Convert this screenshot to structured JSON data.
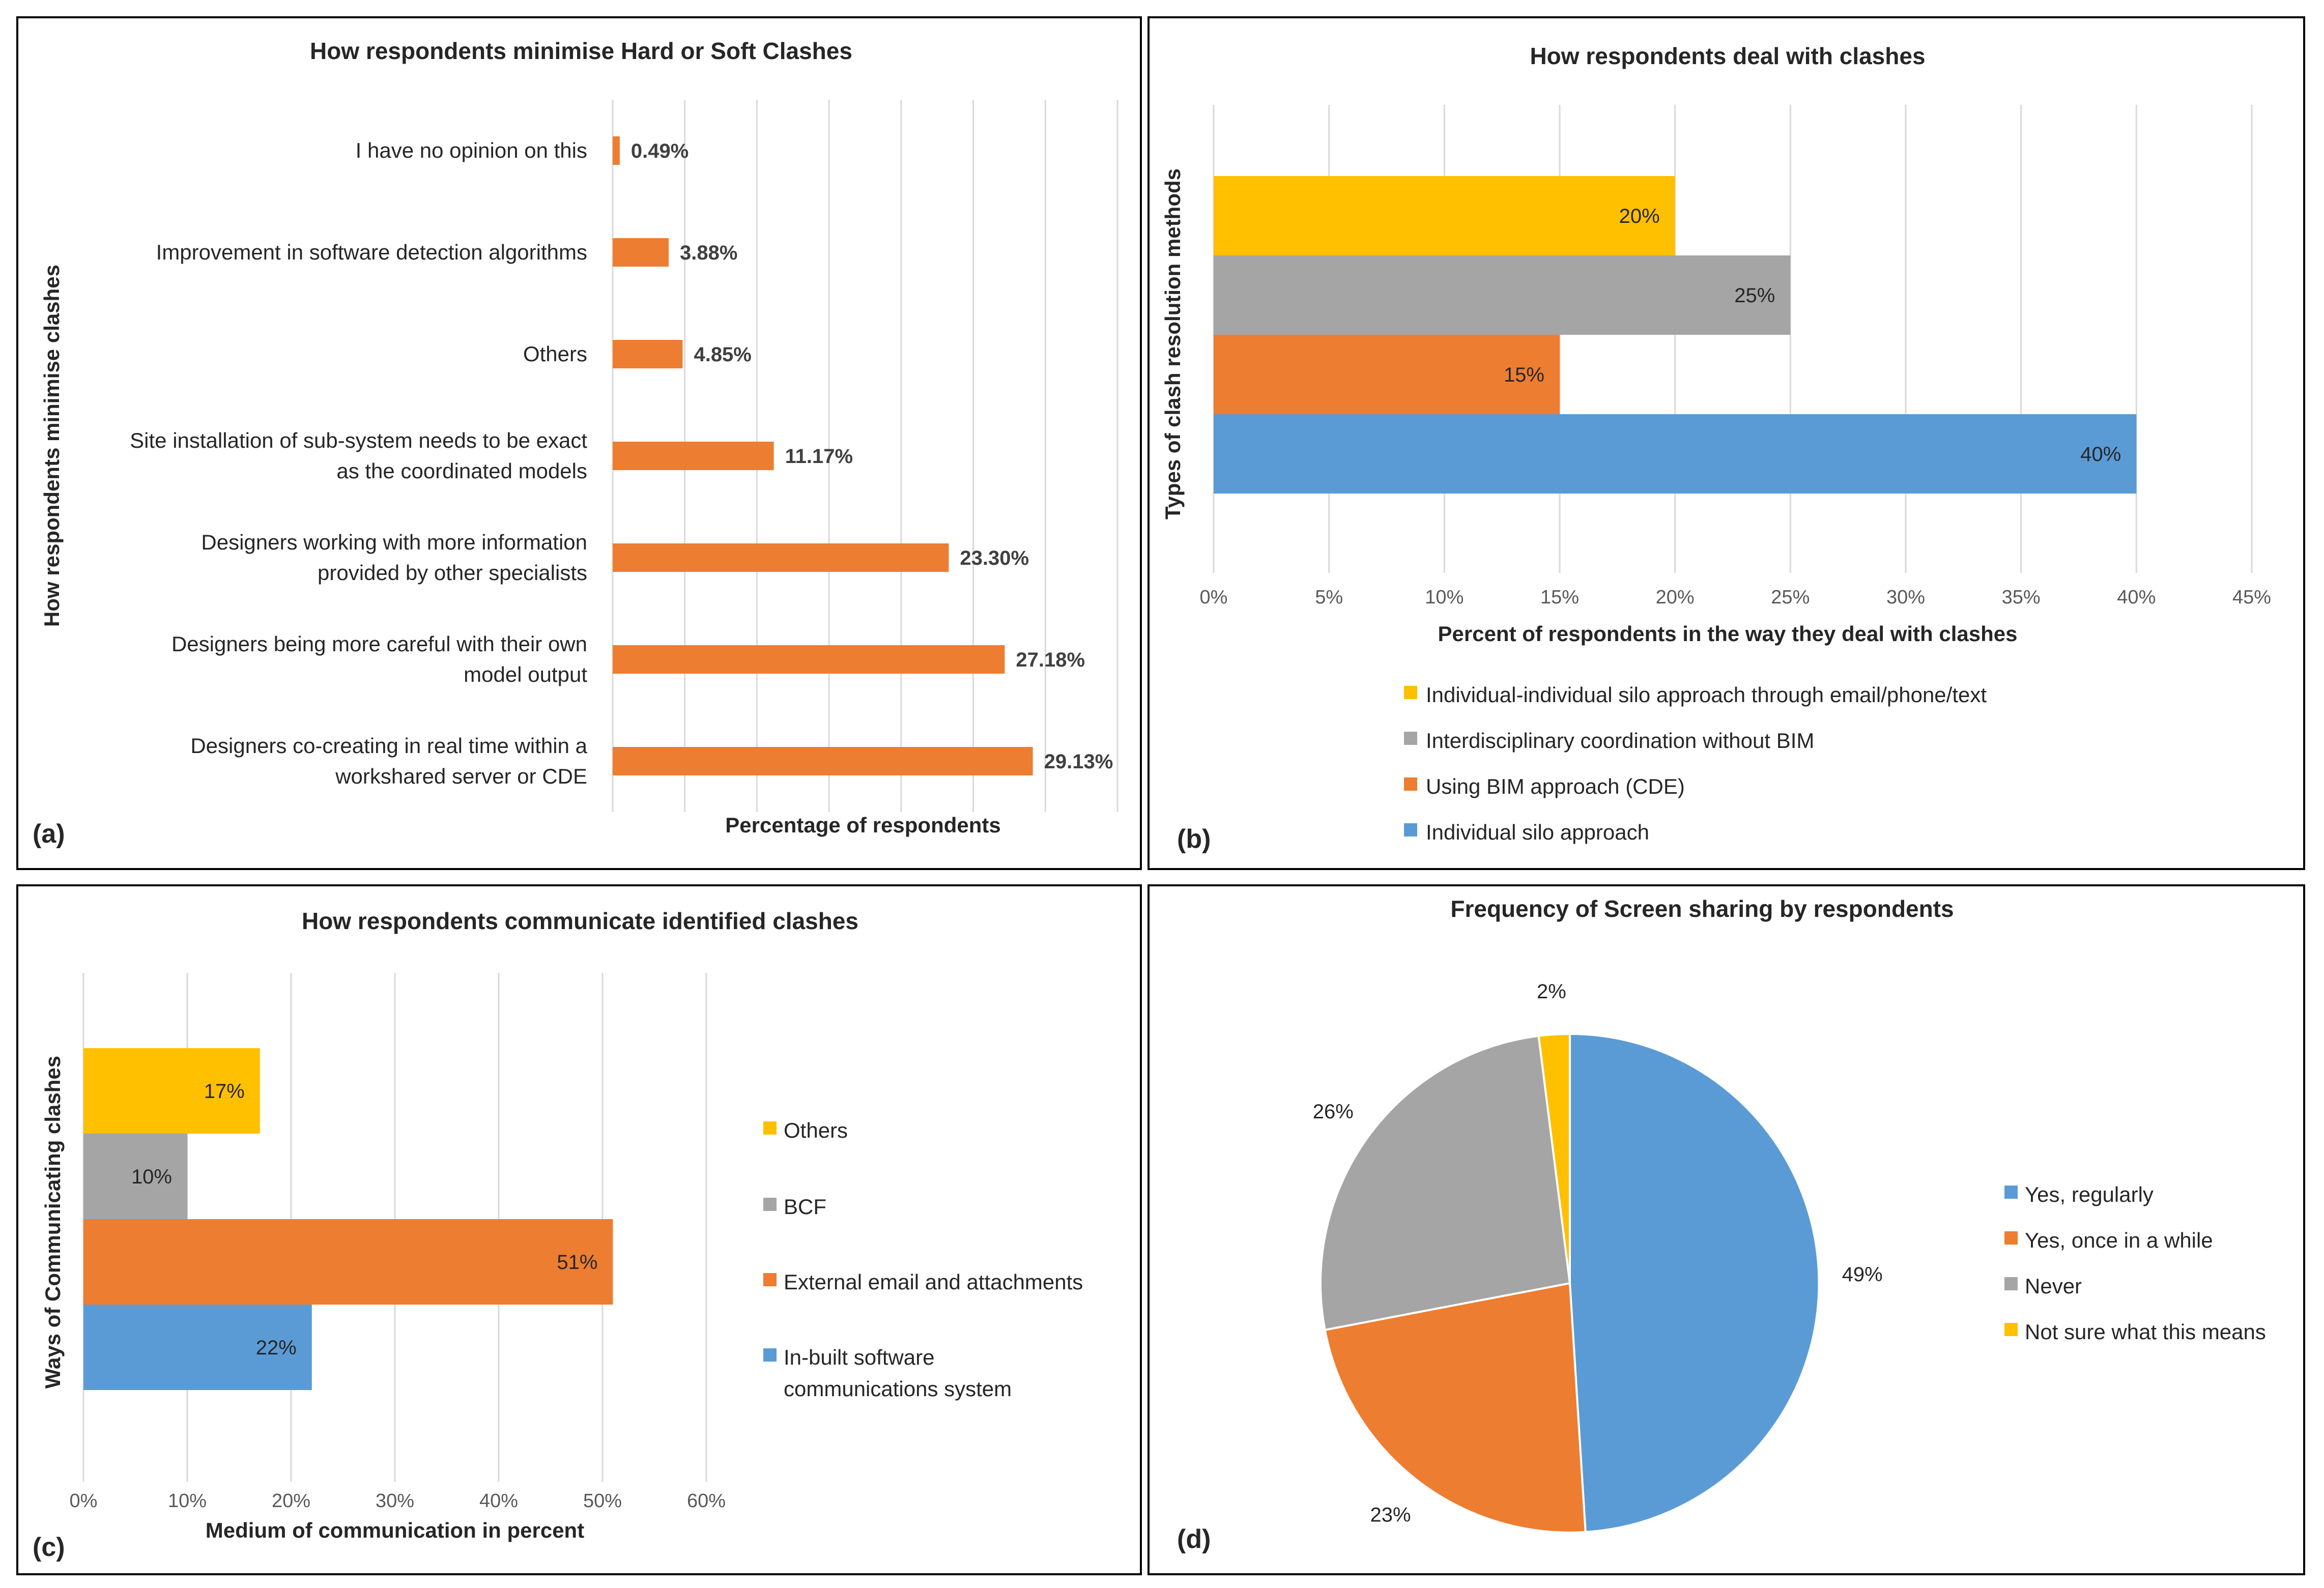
{
  "panels": {
    "a": {
      "label": "(a)"
    },
    "b": {
      "label": "(b)"
    },
    "c": {
      "label": "(c)"
    },
    "d": {
      "label": "(d)"
    }
  },
  "chart_data": [
    {
      "id": "a",
      "type": "bar",
      "orientation": "horizontal",
      "title": "How respondents minimise Hard or Soft Clashes",
      "xlabel": "Percentage of respondents",
      "ylabel": "How respondents minimise clashes",
      "categories": [
        [
          "I have no opinion on this"
        ],
        [
          "Improvement in software detection algorithms"
        ],
        [
          "Others"
        ],
        [
          "Site installation of sub-system needs to be exact",
          "as the coordinated models"
        ],
        [
          "Designers working with more information",
          "provided by other specialists"
        ],
        [
          "Designers being more careful with their own",
          "model output"
        ],
        [
          "Designers co-creating in real time within a",
          "workshared server or CDE"
        ]
      ],
      "values": [
        0.49,
        3.88,
        4.85,
        11.17,
        23.3,
        27.18,
        29.13
      ],
      "value_labels": [
        "0.49%",
        "3.88%",
        "4.85%",
        "11.17%",
        "23.30%",
        "27.18%",
        "29.13%"
      ],
      "xlim": [
        0,
        35
      ],
      "color": "#ED7D31"
    },
    {
      "id": "b",
      "type": "bar",
      "orientation": "horizontal",
      "title": "How respondents deal with clashes",
      "xlabel": "Percent of respondents in the way they deal with clashes",
      "ylabel": "Types of clash resolution methods",
      "xlim": [
        0,
        45
      ],
      "ticks": [
        "0%",
        "5%",
        "10%",
        "15%",
        "20%",
        "25%",
        "30%",
        "35%",
        "40%",
        "45%"
      ],
      "series": [
        {
          "name": "Individual-individual silo approach through email/phone/text",
          "value": 20,
          "label": "20%",
          "color": "#FFC000"
        },
        {
          "name": "Interdisciplinary coordination without BIM",
          "value": 25,
          "label": "25%",
          "color": "#A5A5A5"
        },
        {
          "name": "Using BIM approach (CDE)",
          "value": 15,
          "label": "15%",
          "color": "#ED7D31"
        },
        {
          "name": "Individual silo approach",
          "value": 40,
          "label": "40%",
          "color": "#5B9BD5"
        }
      ]
    },
    {
      "id": "c",
      "type": "bar",
      "orientation": "horizontal",
      "title": "How respondents communicate identified clashes",
      "xlabel": "Medium of communication in percent",
      "ylabel": "Ways of Communicating clashes",
      "xlim": [
        0,
        60
      ],
      "ticks": [
        "0%",
        "10%",
        "20%",
        "30%",
        "40%",
        "50%",
        "60%"
      ],
      "series": [
        {
          "name": "Others",
          "value": 17,
          "label": "17%",
          "color": "#FFC000"
        },
        {
          "name": "BCF",
          "value": 10,
          "label": "10%",
          "color": "#A5A5A5"
        },
        {
          "name": "External email and attachments",
          "value": 51,
          "label": "51%",
          "color": "#ED7D31"
        },
        {
          "name": "In-built software communications system",
          "value": 22,
          "label": "22%",
          "color": "#5B9BD5"
        }
      ],
      "legend_lines": [
        [
          "Others"
        ],
        [
          "BCF"
        ],
        [
          "External email and attachments"
        ],
        [
          "In-built software",
          "communications system"
        ]
      ]
    },
    {
      "id": "d",
      "type": "pie",
      "title": "Frequency of Screen sharing by respondents",
      "slices": [
        {
          "name": "Yes, regularly",
          "value": 49,
          "label": "49%",
          "color": "#5B9BD5"
        },
        {
          "name": "Yes, once in a while",
          "value": 23,
          "label": "23%",
          "color": "#ED7D31"
        },
        {
          "name": "Never",
          "value": 26,
          "label": "26%",
          "color": "#A5A5A5"
        },
        {
          "name": "Not sure what this means",
          "value": 2,
          "label": "2%",
          "color": "#FFC000"
        }
      ]
    }
  ]
}
